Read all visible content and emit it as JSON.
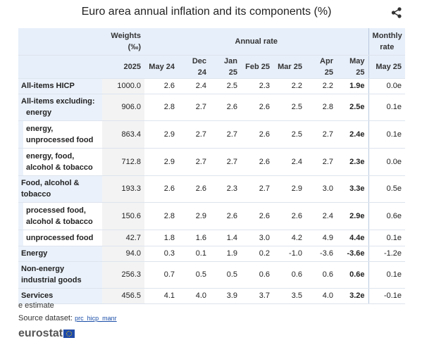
{
  "title": "Euro area annual inflation and its components (%)",
  "header": {
    "weights": [
      "Weights",
      "(‰)"
    ],
    "annual_rate": "Annual rate",
    "monthly_rate": [
      "Monthly",
      "rate"
    ]
  },
  "columns": [
    "2025",
    "May 24",
    "Dec 24",
    "Jan 25",
    "Feb 25",
    "Mar 25",
    "Apr 25",
    "May 25",
    "May 25"
  ],
  "rows": [
    {
      "label": [
        "All-items HICP"
      ],
      "indent": [
        0
      ],
      "cells": [
        "1000.0",
        "2.6",
        "2.4",
        "2.5",
        "2.3",
        "2.2",
        "2.2",
        "1.9e",
        "0.0e"
      ]
    },
    {
      "label": [
        "All-items excluding:",
        "energy"
      ],
      "indent": [
        0,
        1
      ],
      "cells": [
        "906.0",
        "2.8",
        "2.7",
        "2.6",
        "2.6",
        "2.5",
        "2.8",
        "2.5e",
        "0.1e"
      ]
    },
    {
      "label": [
        "energy,",
        "unprocessed food"
      ],
      "indent": [
        1,
        1
      ],
      "cells": [
        "863.4",
        "2.9",
        "2.7",
        "2.7",
        "2.6",
        "2.5",
        "2.7",
        "2.4e",
        "0.1e"
      ]
    },
    {
      "label": [
        "energy, food,",
        "alcohol & tobacco"
      ],
      "indent": [
        1,
        1
      ],
      "cells": [
        "712.8",
        "2.9",
        "2.7",
        "2.7",
        "2.6",
        "2.4",
        "2.7",
        "2.3e",
        "0.0e"
      ]
    },
    {
      "label": [
        "Food, alcohol &",
        "tobacco"
      ],
      "indent": [
        0,
        0
      ],
      "cells": [
        "193.3",
        "2.6",
        "2.6",
        "2.3",
        "2.7",
        "2.9",
        "3.0",
        "3.3e",
        "0.5e"
      ]
    },
    {
      "label": [
        "processed food,",
        "alcohol & tobacco"
      ],
      "indent": [
        1,
        1
      ],
      "cells": [
        "150.6",
        "2.8",
        "2.9",
        "2.6",
        "2.6",
        "2.6",
        "2.4",
        "2.9e",
        "0.6e"
      ]
    },
    {
      "label": [
        "unprocessed food"
      ],
      "indent": [
        1
      ],
      "cells": [
        "42.7",
        "1.8",
        "1.6",
        "1.4",
        "3.0",
        "4.2",
        "4.9",
        "4.4e",
        "0.1e"
      ]
    },
    {
      "label": [
        "Energy"
      ],
      "indent": [
        0
      ],
      "cells": [
        "94.0",
        "0.3",
        "0.1",
        "1.9",
        "0.2",
        "-1.0",
        "-3.6",
        "-3.6e",
        "-1.2e"
      ]
    },
    {
      "label": [
        "Non-energy",
        "industrial goods"
      ],
      "indent": [
        0,
        0
      ],
      "cells": [
        "256.3",
        "0.7",
        "0.5",
        "0.5",
        "0.6",
        "0.6",
        "0.6",
        "0.6e",
        "0.1e"
      ]
    },
    {
      "label": [
        "Services"
      ],
      "indent": [
        0
      ],
      "cells": [
        "456.5",
        "4.1",
        "4.0",
        "3.9",
        "3.7",
        "3.5",
        "4.0",
        "3.2e",
        "-0.1e"
      ]
    }
  ],
  "footnote": "e estimate",
  "source_label": "Source dataset:",
  "source_link": "prc_hicp_manr",
  "logo": "eurostat"
}
